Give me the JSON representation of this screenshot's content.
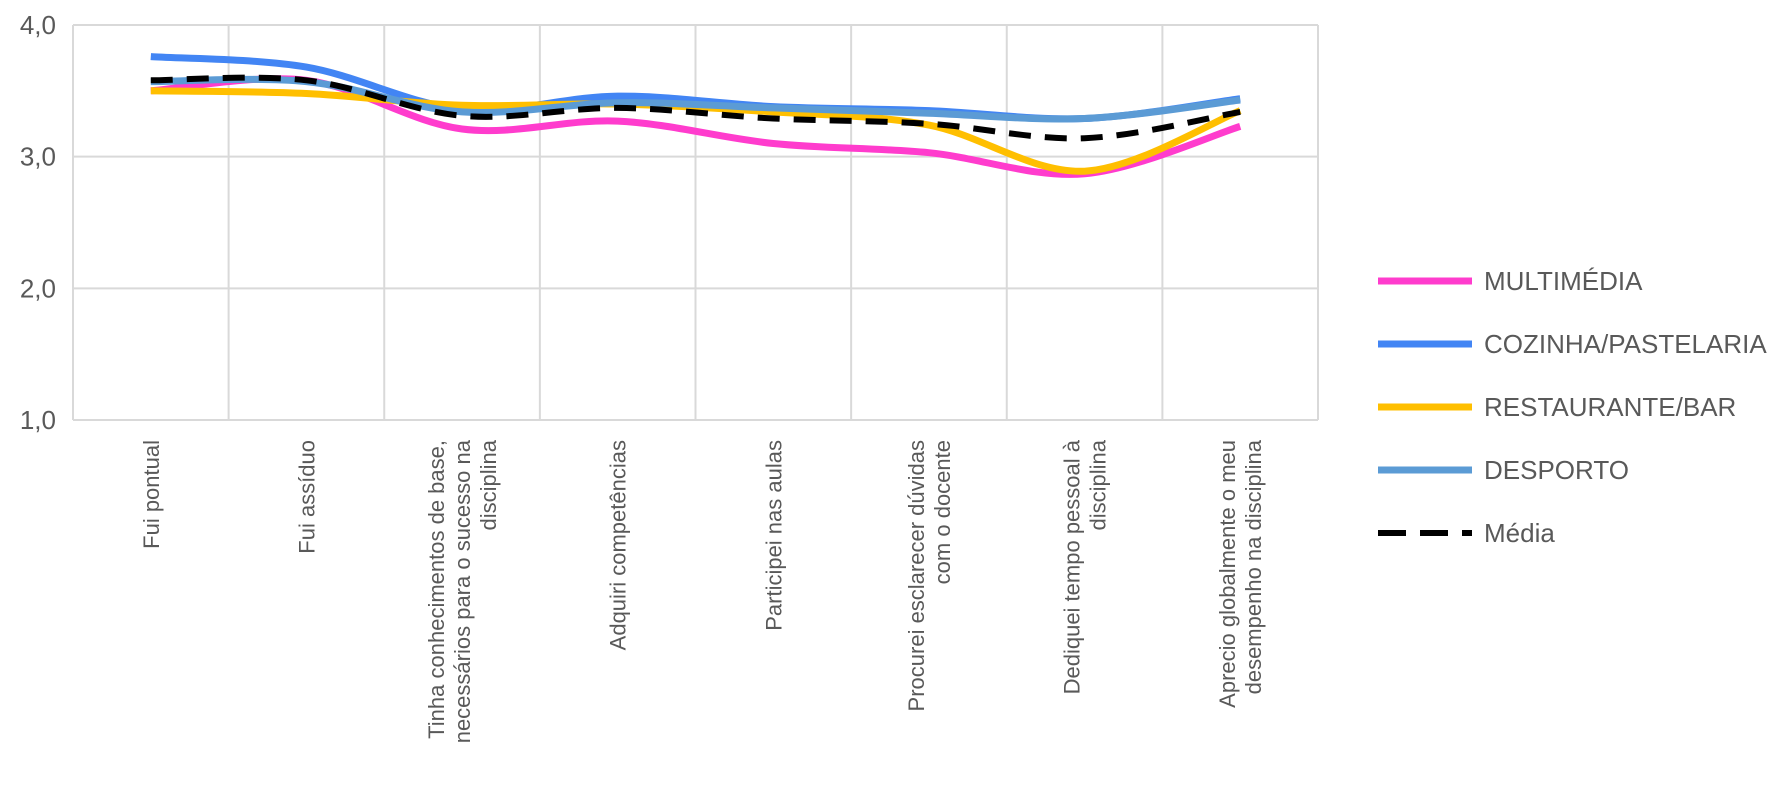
{
  "chart_data": {
    "type": "line",
    "categories": [
      [
        "Fui pontual"
      ],
      [
        "Fui assíduo"
      ],
      [
        "Tinha conhecimentos de base,",
        "necessários para o sucesso na",
        "disciplina"
      ],
      [
        "Adquiri competências"
      ],
      [
        "Participei nas aulas"
      ],
      [
        "Procurei esclarecer dúvidas",
        "com o docente"
      ],
      [
        "Dediquei tempo pessoal à",
        "disciplina"
      ],
      [
        "Aprecio globalmente o meu",
        "desempenho na disciplina"
      ]
    ],
    "y_ticks": [
      "1,0",
      "2,0",
      "3,0",
      "4,0"
    ],
    "ylim": [
      1,
      4
    ],
    "smooth": true,
    "grid": true,
    "legend_position": "right",
    "series": [
      {
        "name": "MULTIMÉDIA",
        "color": "#ff3ccd",
        "dash": false,
        "values": [
          3.5,
          3.58,
          3.21,
          3.27,
          3.1,
          3.03,
          2.87,
          3.23
        ]
      },
      {
        "name": "COZINHA/PASTELARIA",
        "color": "#4285f4",
        "dash": false,
        "values": [
          3.76,
          3.68,
          3.36,
          3.46,
          3.38,
          3.35,
          3.29,
          3.44
        ]
      },
      {
        "name": "RESTAURANTE/BAR",
        "color": "#ffbf00",
        "dash": false,
        "values": [
          3.5,
          3.48,
          3.39,
          3.4,
          3.34,
          3.24,
          2.89,
          3.35
        ]
      },
      {
        "name": "DESPORTO",
        "color": "#5b9bd5",
        "dash": false,
        "values": [
          3.57,
          3.57,
          3.34,
          3.41,
          3.37,
          3.33,
          3.29,
          3.43
        ]
      },
      {
        "name": "Média",
        "color": "#000000",
        "dash": true,
        "values": [
          3.58,
          3.58,
          3.31,
          3.37,
          3.29,
          3.25,
          3.14,
          3.34
        ]
      }
    ]
  }
}
